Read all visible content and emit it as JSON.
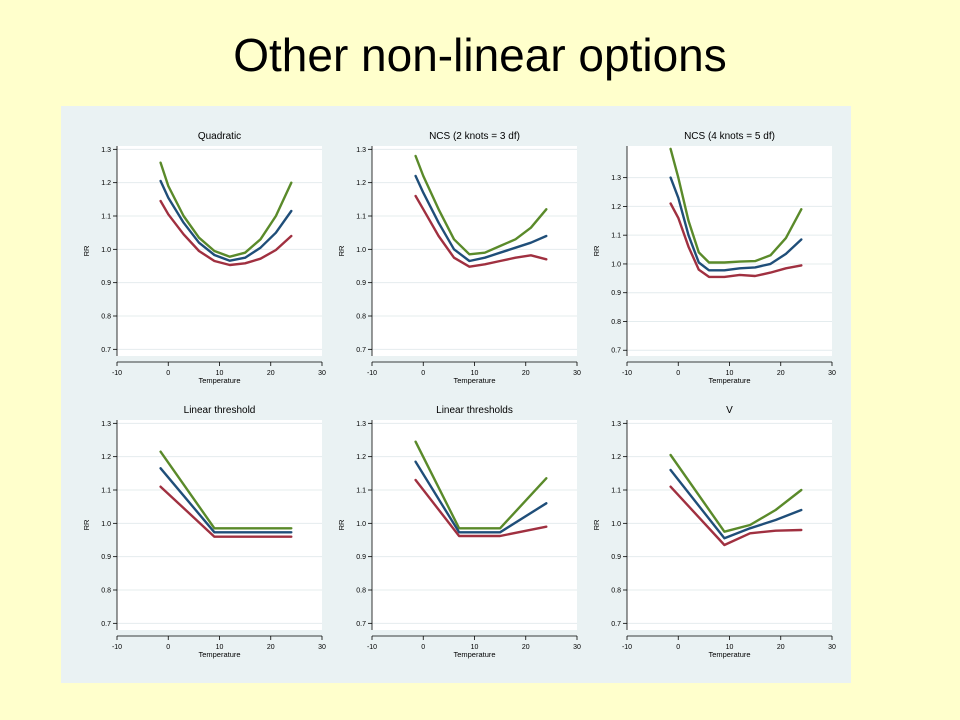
{
  "slide": {
    "title": "Other non-linear options"
  },
  "colors": {
    "upper": "#5a8a2a",
    "central": "#1f4e79",
    "lower": "#a03040",
    "background": "#ffffcc",
    "figure_background": "#eaf2f3"
  },
  "chart_data": [
    {
      "type": "line",
      "title": "Quadratic",
      "xlabel": "Temperature",
      "ylabel": "RR",
      "xlim": [
        -10,
        30
      ],
      "ylim": [
        0.68,
        1.31
      ],
      "xticks": [
        "-10",
        "0",
        "10",
        "20",
        "30"
      ],
      "yticks": [
        "1.3",
        "1.2",
        "1.1",
        "1.0",
        "0.9",
        "0.8",
        "0.7"
      ],
      "series": [
        {
          "values": [
            [
              -1.5,
              1.26
            ],
            [
              0,
              1.19
            ],
            [
              3,
              1.1
            ],
            [
              6,
              1.035
            ],
            [
              9,
              0.995
            ],
            [
              12,
              0.978
            ],
            [
              15,
              0.99
            ],
            [
              18,
              1.03
            ],
            [
              21,
              1.1
            ],
            [
              24,
              1.2
            ]
          ]
        },
        {
          "values": [
            [
              -1.5,
              1.205
            ],
            [
              0,
              1.155
            ],
            [
              3,
              1.08
            ],
            [
              6,
              1.02
            ],
            [
              9,
              0.983
            ],
            [
              12,
              0.966
            ],
            [
              15,
              0.975
            ],
            [
              18,
              1.005
            ],
            [
              21,
              1.05
            ],
            [
              24,
              1.115
            ]
          ]
        },
        {
          "values": [
            [
              -1.5,
              1.145
            ],
            [
              0,
              1.105
            ],
            [
              3,
              1.045
            ],
            [
              6,
              0.995
            ],
            [
              9,
              0.965
            ],
            [
              12,
              0.953
            ],
            [
              15,
              0.958
            ],
            [
              18,
              0.972
            ],
            [
              21,
              0.998
            ],
            [
              24,
              1.04
            ]
          ]
        }
      ]
    },
    {
      "type": "line",
      "title": "NCS (2 knots = 3 df)",
      "xlabel": "Temperature",
      "ylabel": "RR",
      "xlim": [
        -10,
        30
      ],
      "ylim": [
        0.68,
        1.31
      ],
      "xticks": [
        "-10",
        "0",
        "10",
        "20",
        "30"
      ],
      "yticks": [
        "1.3",
        "1.2",
        "1.1",
        "1.0",
        "0.9",
        "0.8",
        "0.7"
      ],
      "series": [
        {
          "values": [
            [
              -1.5,
              1.28
            ],
            [
              0,
              1.22
            ],
            [
              3,
              1.12
            ],
            [
              6,
              1.03
            ],
            [
              9,
              0.985
            ],
            [
              12,
              0.99
            ],
            [
              15,
              1.01
            ],
            [
              18,
              1.03
            ],
            [
              21,
              1.065
            ],
            [
              24,
              1.12
            ]
          ]
        },
        {
          "values": [
            [
              -1.5,
              1.22
            ],
            [
              0,
              1.17
            ],
            [
              3,
              1.08
            ],
            [
              6,
              1.0
            ],
            [
              9,
              0.965
            ],
            [
              12,
              0.975
            ],
            [
              15,
              0.99
            ],
            [
              18,
              1.005
            ],
            [
              21,
              1.02
            ],
            [
              24,
              1.04
            ]
          ]
        },
        {
          "values": [
            [
              -1.5,
              1.16
            ],
            [
              0,
              1.12
            ],
            [
              3,
              1.04
            ],
            [
              6,
              0.975
            ],
            [
              9,
              0.948
            ],
            [
              12,
              0.955
            ],
            [
              15,
              0.965
            ],
            [
              18,
              0.975
            ],
            [
              21,
              0.982
            ],
            [
              24,
              0.97
            ]
          ]
        }
      ]
    },
    {
      "type": "line",
      "title": "NCS (4 knots = 5 df)",
      "xlabel": "Temperature",
      "ylabel": "RR",
      "xlim": [
        -10,
        30
      ],
      "ylim": [
        0.68,
        1.41
      ],
      "xticks": [
        "-10",
        "0",
        "10",
        "20",
        "30"
      ],
      "yticks": [
        "1.3",
        "1.2",
        "1.1",
        "1.0",
        "0.9",
        "0.8",
        "0.7"
      ],
      "series": [
        {
          "values": [
            [
              -1.5,
              1.4
            ],
            [
              0,
              1.3
            ],
            [
              2,
              1.15
            ],
            [
              4,
              1.04
            ],
            [
              6,
              1.005
            ],
            [
              9,
              1.005
            ],
            [
              12,
              1.008
            ],
            [
              15,
              1.01
            ],
            [
              18,
              1.03
            ],
            [
              21,
              1.09
            ],
            [
              24,
              1.19
            ]
          ]
        },
        {
          "values": [
            [
              -1.5,
              1.3
            ],
            [
              0,
              1.23
            ],
            [
              2,
              1.1
            ],
            [
              4,
              1.005
            ],
            [
              6,
              0.978
            ],
            [
              9,
              0.978
            ],
            [
              12,
              0.985
            ],
            [
              15,
              0.988
            ],
            [
              18,
              1.0
            ],
            [
              21,
              1.035
            ],
            [
              24,
              1.085
            ]
          ]
        },
        {
          "values": [
            [
              -1.5,
              1.21
            ],
            [
              0,
              1.16
            ],
            [
              2,
              1.06
            ],
            [
              4,
              0.98
            ],
            [
              6,
              0.955
            ],
            [
              9,
              0.955
            ],
            [
              12,
              0.962
            ],
            [
              15,
              0.958
            ],
            [
              18,
              0.97
            ],
            [
              21,
              0.985
            ],
            [
              24,
              0.995
            ]
          ]
        }
      ]
    },
    {
      "type": "line",
      "title": "Linear threshold",
      "xlabel": "Temperature",
      "ylabel": "RR",
      "xlim": [
        -10,
        30
      ],
      "ylim": [
        0.68,
        1.31
      ],
      "xticks": [
        "-10",
        "0",
        "10",
        "20",
        "30"
      ],
      "yticks": [
        "1.3",
        "1.2",
        "1.1",
        "1.0",
        "0.9",
        "0.8",
        "0.7"
      ],
      "series": [
        {
          "values": [
            [
              -1.5,
              1.215
            ],
            [
              9,
              0.985
            ],
            [
              24,
              0.985
            ]
          ]
        },
        {
          "values": [
            [
              -1.5,
              1.165
            ],
            [
              9,
              0.973
            ],
            [
              24,
              0.973
            ]
          ]
        },
        {
          "values": [
            [
              -1.5,
              1.11
            ],
            [
              9,
              0.96
            ],
            [
              24,
              0.96
            ]
          ]
        }
      ]
    },
    {
      "type": "line",
      "title": "Linear thresholds",
      "xlabel": "Temperature",
      "ylabel": "RR",
      "xlim": [
        -10,
        30
      ],
      "ylim": [
        0.68,
        1.31
      ],
      "xticks": [
        "-10",
        "0",
        "10",
        "20",
        "30"
      ],
      "yticks": [
        "1.3",
        "1.2",
        "1.1",
        "1.0",
        "0.9",
        "0.8",
        "0.7"
      ],
      "series": [
        {
          "values": [
            [
              -1.5,
              1.245
            ],
            [
              7,
              0.985
            ],
            [
              15,
              0.985
            ],
            [
              24,
              1.135
            ]
          ]
        },
        {
          "values": [
            [
              -1.5,
              1.185
            ],
            [
              7,
              0.973
            ],
            [
              15,
              0.973
            ],
            [
              24,
              1.06
            ]
          ]
        },
        {
          "values": [
            [
              -1.5,
              1.13
            ],
            [
              7,
              0.962
            ],
            [
              15,
              0.962
            ],
            [
              24,
              0.99
            ]
          ]
        }
      ]
    },
    {
      "type": "line",
      "title": "V",
      "xlabel": "Temperature",
      "ylabel": "RR",
      "xlim": [
        -10,
        30
      ],
      "ylim": [
        0.68,
        1.31
      ],
      "xticks": [
        "-10",
        "0",
        "10",
        "20",
        "30"
      ],
      "yticks": [
        "1.3",
        "1.2",
        "1.1",
        "1.0",
        "0.9",
        "0.8",
        "0.7"
      ],
      "series": [
        {
          "values": [
            [
              -1.5,
              1.205
            ],
            [
              9,
              0.975
            ],
            [
              14,
              0.995
            ],
            [
              19,
              1.04
            ],
            [
              24,
              1.1
            ]
          ]
        },
        {
          "values": [
            [
              -1.5,
              1.16
            ],
            [
              9,
              0.955
            ],
            [
              14,
              0.985
            ],
            [
              19,
              1.01
            ],
            [
              24,
              1.04
            ]
          ]
        },
        {
          "values": [
            [
              -1.5,
              1.11
            ],
            [
              9,
              0.935
            ],
            [
              14,
              0.97
            ],
            [
              19,
              0.978
            ],
            [
              24,
              0.98
            ]
          ]
        }
      ]
    }
  ]
}
